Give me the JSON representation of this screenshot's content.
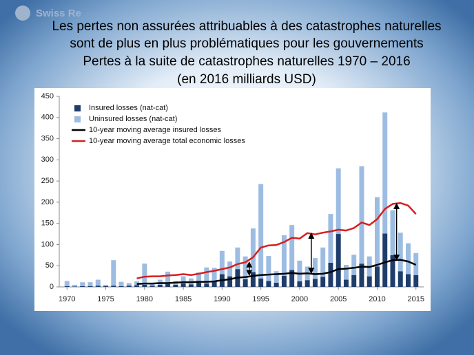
{
  "logo": "Swiss Re",
  "chart_data": {
    "type": "bar",
    "title": [
      "Les pertes non assurées attribuables à des catastrophes naturelles",
      "sont de plus en plus problématiques pour les gouvernements",
      "Pertes à la suite de catastrophes naturelles 1970 – 2016",
      "(en 2016 milliards USD)"
    ],
    "x": [
      1970,
      1971,
      1972,
      1973,
      1974,
      1975,
      1976,
      1977,
      1978,
      1979,
      1980,
      1981,
      1982,
      1983,
      1984,
      1985,
      1986,
      1987,
      1988,
      1989,
      1990,
      1991,
      1992,
      1993,
      1994,
      1995,
      1996,
      1997,
      1998,
      1999,
      2000,
      2001,
      2002,
      2003,
      2004,
      2005,
      2006,
      2007,
      2008,
      2009,
      2010,
      2011,
      2012,
      2013,
      2014,
      2015
    ],
    "xlim": [
      1969,
      2016
    ],
    "xticks": [
      1970,
      1975,
      1980,
      1985,
      1990,
      1995,
      2000,
      2005,
      2010,
      2015
    ],
    "ylim": [
      0,
      450
    ],
    "yticks": [
      0,
      50,
      100,
      150,
      200,
      250,
      300,
      350,
      400,
      450
    ],
    "stacked": true,
    "series": [
      {
        "name": "Insured losses (nat-cat)",
        "color": "#1f3d6b",
        "kind": "bar",
        "values": [
          2,
          1,
          2,
          2,
          3,
          2,
          3,
          2,
          3,
          4,
          5,
          3,
          5,
          7,
          5,
          8,
          6,
          10,
          8,
          14,
          30,
          25,
          42,
          18,
          35,
          20,
          14,
          10,
          26,
          40,
          13,
          16,
          19,
          24,
          57,
          125,
          17,
          28,
          55,
          25,
          48,
          126,
          75,
          37,
          30,
          28
        ]
      },
      {
        "name": "Uninsured losses (nat-cat)",
        "color": "#9dbce2",
        "kind": "bar",
        "values": [
          12,
          4,
          9,
          9,
          14,
          3,
          60,
          10,
          6,
          9,
          50,
          5,
          12,
          29,
          9,
          17,
          14,
          24,
          38,
          31,
          55,
          35,
          51,
          54,
          103,
          223,
          59,
          27,
          96,
          106,
          49,
          32,
          49,
          69,
          115,
          155,
          35,
          48,
          230,
          47,
          164,
          286,
          106,
          91,
          73,
          52
        ]
      },
      {
        "name": "10-year moving average insured losses",
        "color": "#000000",
        "kind": "line",
        "values": [
          null,
          null,
          null,
          null,
          null,
          null,
          null,
          null,
          null,
          7,
          8,
          8,
          9,
          9,
          10,
          11,
          11,
          12,
          12,
          13,
          16,
          18,
          22,
          23,
          26,
          28,
          29,
          30,
          31,
          33,
          31,
          32,
          30,
          31,
          35,
          42,
          43,
          45,
          48,
          47,
          52,
          58,
          63,
          64,
          60,
          52
        ]
      },
      {
        "name": "10-year moving average total economic losses",
        "color": "#d61f1f",
        "kind": "line",
        "values": [
          null,
          null,
          null,
          null,
          null,
          null,
          null,
          null,
          null,
          20,
          24,
          25,
          25,
          27,
          28,
          30,
          28,
          31,
          35,
          38,
          42,
          46,
          54,
          58,
          70,
          93,
          98,
          99,
          106,
          116,
          114,
          127,
          124,
          128,
          131,
          135,
          133,
          139,
          152,
          146,
          160,
          184,
          196,
          198,
          192,
          172
        ]
      }
    ]
  }
}
